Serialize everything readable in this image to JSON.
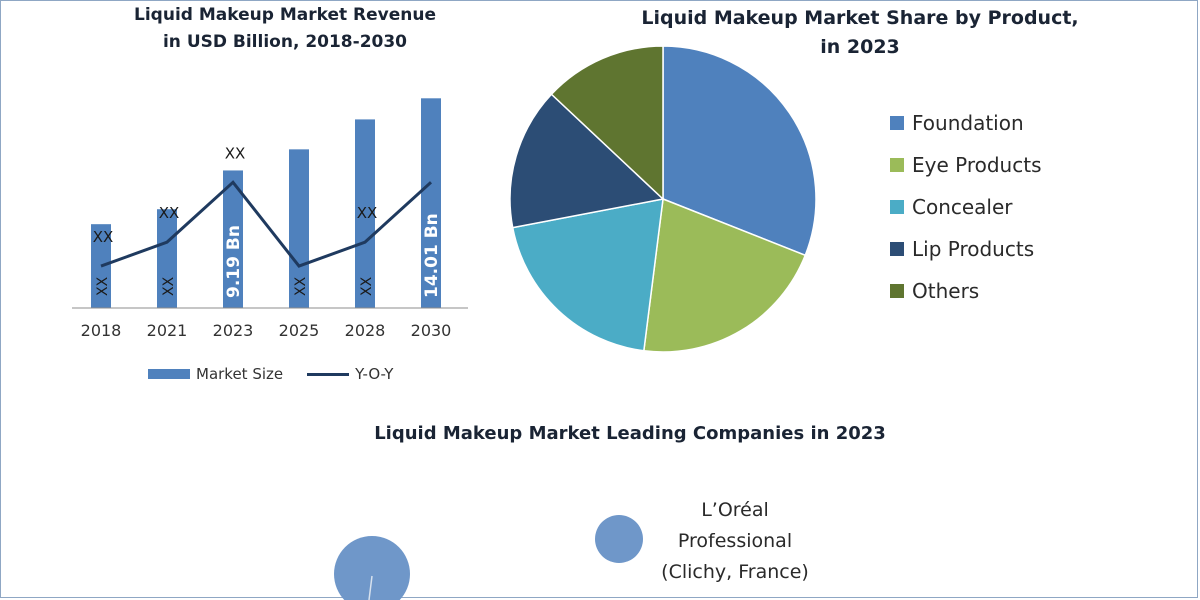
{
  "chart_data": [
    {
      "type": "bar",
      "title_line1": "Liquid Makeup Market Revenue",
      "title_line2": "in USD Billion, 2018-2030",
      "categories": [
        "2018",
        "2021",
        "2023",
        "2025",
        "2028",
        "2030"
      ],
      "series": [
        {
          "name": "Market Size",
          "type": "bar",
          "values": [
            5.6,
            6.6,
            9.19,
            10.6,
            12.6,
            14.01
          ],
          "labels": [
            "XX",
            "XX",
            "9.19 Bn",
            "XX",
            "XX",
            "14.01 Bn"
          ],
          "color": "#4f81bd"
        },
        {
          "name": "Y-O-Y",
          "type": "line",
          "values": [
            2.8,
            4.4,
            8.4,
            2.8,
            4.4,
            8.4
          ],
          "labels": [
            "XX",
            "XX",
            "XX",
            "",
            "XX",
            ""
          ],
          "color": "#1f3a5f"
        }
      ],
      "ylim": [
        0,
        15.5
      ],
      "grid": false,
      "legend_position": "bottom"
    },
    {
      "type": "pie",
      "title_line1": "Liquid Makeup Market Share by Product,",
      "title_line2": "in 2023",
      "slices": [
        {
          "label": "Foundation",
          "value": 31,
          "color": "#4f81bd"
        },
        {
          "label": "Eye Products",
          "value": 21,
          "color": "#9bbb59"
        },
        {
          "label": "Concealer",
          "value": 20,
          "color": "#4bacc6"
        },
        {
          "label": "Lip Products",
          "value": 15,
          "color": "#2c4d75"
        },
        {
          "label": "Others",
          "value": 13,
          "color": "#5f7530"
        }
      ],
      "legend_position": "right"
    }
  ],
  "companies": {
    "title": "Liquid Makeup Market Leading Companies in 2023",
    "bubble_color": "#6f97c9",
    "items": [
      {
        "name_line1": "L’Oréal",
        "name_line2": "Professional",
        "name_line3": "(Clichy, France)"
      }
    ]
  }
}
